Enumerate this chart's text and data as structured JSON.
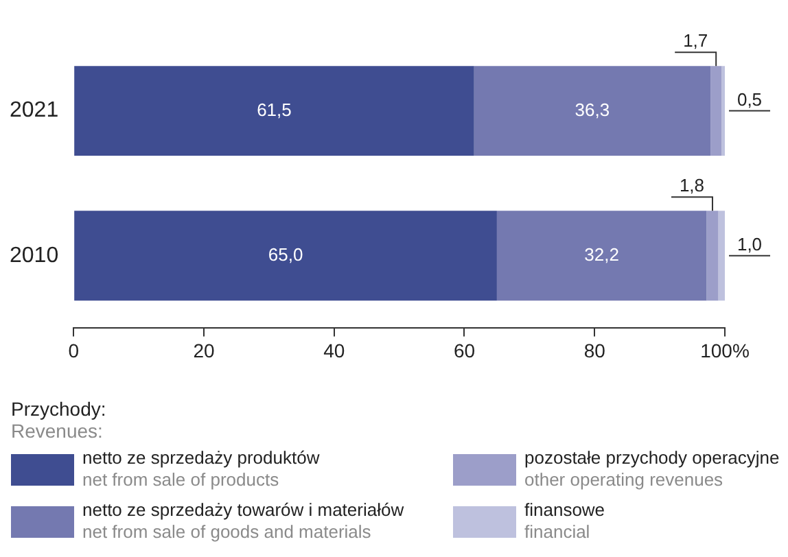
{
  "chart_data": {
    "type": "bar",
    "orientation": "horizontal",
    "stacked": true,
    "categories": [
      "2021",
      "2010"
    ],
    "series": [
      {
        "name": "netto ze sprzedaży produktów\nnet from sale of products",
        "color": "#3f4d91",
        "values": [
          61.5,
          65.0
        ],
        "value_labels": [
          "61,5",
          "65,0"
        ]
      },
      {
        "name": "netto ze sprzedaży towarów i materiałów\nnet from sale of goods and materials",
        "color": "#7479b0",
        "values": [
          36.3,
          32.2
        ],
        "value_labels": [
          "36,3",
          "32,2"
        ]
      },
      {
        "name": "pozostałe przychody operacyjne\nother operating revenues",
        "color": "#9c9ec9",
        "values": [
          1.7,
          1.8
        ],
        "value_labels": [
          "1,7",
          "1,8"
        ]
      },
      {
        "name": "finansowe\nfinancial",
        "color": "#bec1de",
        "values": [
          0.5,
          1.0
        ],
        "value_labels": [
          "0,5",
          "1,0"
        ]
      }
    ],
    "xlim": [
      0,
      100
    ],
    "xticks": [
      0,
      20,
      40,
      60,
      80,
      {
        "value": 100,
        "label": "100%"
      }
    ],
    "legend_title": "Przychody:\nRevenues:",
    "legend": "bottom",
    "grid": false
  }
}
